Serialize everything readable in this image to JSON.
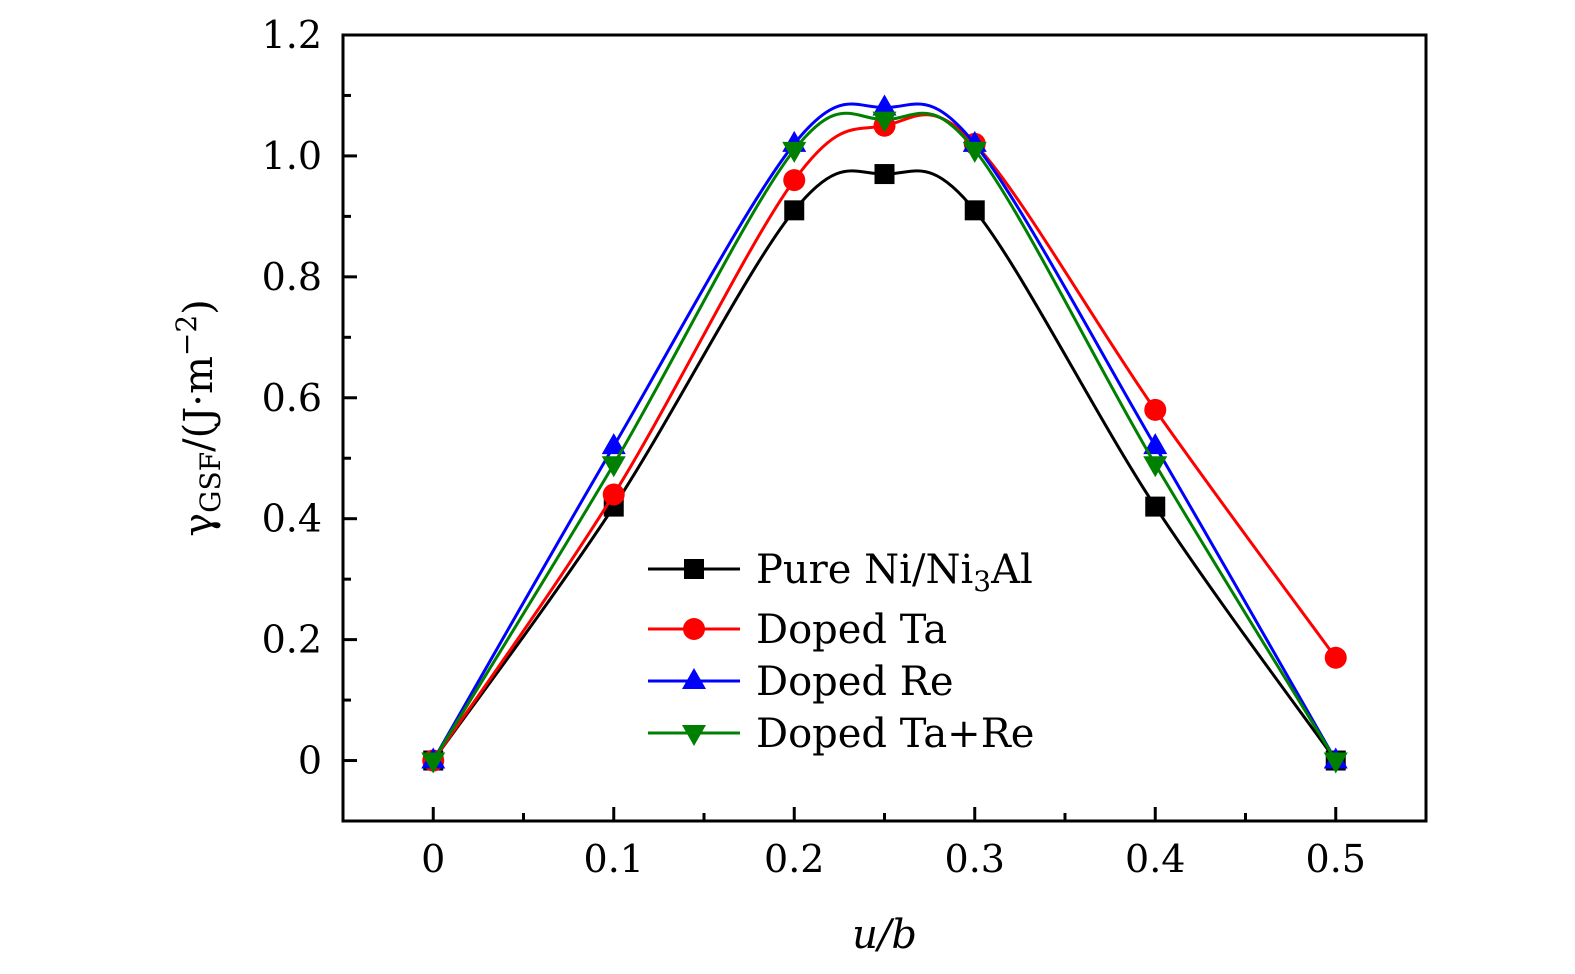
{
  "chart_data": {
    "type": "line",
    "title": "",
    "xlabel": "u/b",
    "ylabel": {
      "symbol": "γ",
      "subscript": "GSF",
      "unit_prefix": "/(J·m",
      "unit_exponent": "−2",
      "unit_suffix": ")"
    },
    "xlim": [
      -0.05,
      0.55
    ],
    "ylim": [
      -0.1,
      1.2
    ],
    "x_ticks": [
      0,
      0.1,
      0.2,
      0.3,
      0.4,
      0.5
    ],
    "x_tick_labels": [
      "0",
      "0.1",
      "0.2",
      "0.3",
      "0.4",
      "0.5"
    ],
    "x_minor_ticks": [
      0.05,
      0.15,
      0.25,
      0.35,
      0.45
    ],
    "y_ticks": [
      0,
      0.2,
      0.4,
      0.6,
      0.8,
      1.0,
      1.2
    ],
    "y_tick_labels": [
      "0",
      "0.2",
      "0.4",
      "0.6",
      "0.8",
      "1.0",
      "1.2"
    ],
    "y_minor_ticks": [
      -0.1,
      0.1,
      0.3,
      0.5,
      0.7,
      0.9,
      1.1
    ],
    "grid": false,
    "legend_position": "bottom-center",
    "x": [
      0,
      0.1,
      0.2,
      0.25,
      0.3,
      0.4,
      0.5
    ],
    "series": [
      {
        "name": "Pure Ni/Ni3Al",
        "legend": {
          "main": "Pure Ni/Ni",
          "sub": "3",
          "tail": "Al"
        },
        "color": "#000000",
        "marker": "square",
        "values": [
          0,
          0.42,
          0.91,
          0.97,
          0.91,
          0.42,
          0
        ]
      },
      {
        "name": "Doped Ta",
        "legend": {
          "main": "Doped Ta",
          "sub": "",
          "tail": ""
        },
        "color": "#ff0000",
        "marker": "circle",
        "values": [
          0,
          0.44,
          0.96,
          1.05,
          1.02,
          0.58,
          0.17
        ]
      },
      {
        "name": "Doped Re",
        "legend": {
          "main": "Doped Re",
          "sub": "",
          "tail": ""
        },
        "color": "#0000ff",
        "marker": "triangle-up",
        "values": [
          0,
          0.52,
          1.02,
          1.08,
          1.02,
          0.52,
          0
        ]
      },
      {
        "name": "Doped Ta+Re",
        "legend": {
          "main": "Doped Ta+Re",
          "sub": "",
          "tail": ""
        },
        "color": "#008000",
        "marker": "triangle-down",
        "values": [
          0,
          0.49,
          1.01,
          1.06,
          1.01,
          0.49,
          0
        ]
      }
    ]
  }
}
